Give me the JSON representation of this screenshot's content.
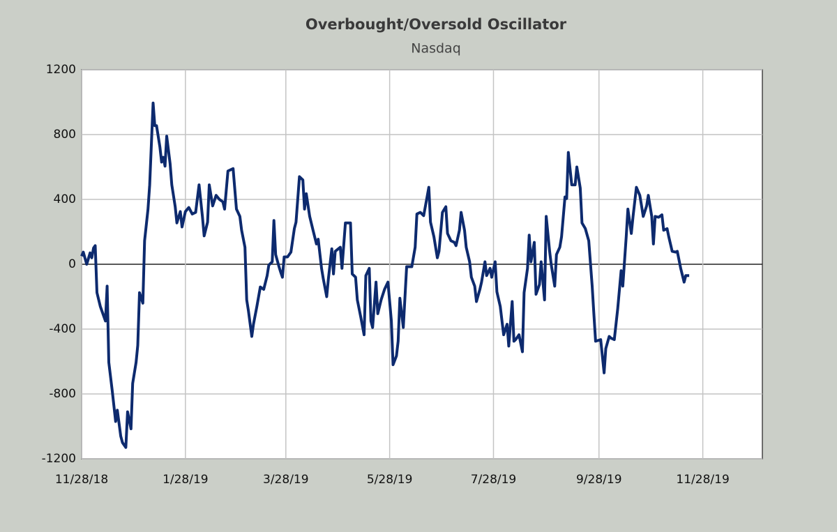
{
  "chart_data": {
    "type": "line",
    "title": "Overbought/Oversold  Oscillator",
    "subtitle": "Nasdaq",
    "color": "#0d2a6e",
    "grid": true,
    "xlim": [
      "11/28/18",
      "1/2/20"
    ],
    "xticks": [
      "11/28/18",
      "1/28/19",
      "3/28/19",
      "5/28/19",
      "7/28/19",
      "9/28/19",
      "11/28/19"
    ],
    "ylim": [
      -1200,
      1200
    ],
    "yticks": [
      -1200,
      -800,
      -400,
      0,
      400,
      800,
      1200
    ],
    "x": [
      "11/28/18",
      "11/29/18",
      "12/1/18",
      "12/3/18",
      "12/4/18",
      "12/5/18",
      "12/6/18",
      "12/7/18",
      "12/9/18",
      "12/12/18",
      "12/13/18",
      "12/14/18",
      "12/16/18",
      "12/18/18",
      "12/19/18",
      "12/21/18",
      "12/22/18",
      "12/24/18",
      "12/25/18",
      "12/27/18",
      "12/28/18",
      "12/30/18",
      "12/31/18",
      "1/1/19",
      "1/3/19",
      "1/4/19",
      "1/6/19",
      "1/7/19",
      "1/9/19",
      "1/10/19",
      "1/11/19",
      "1/13/19",
      "1/14/19",
      "1/15/19",
      "1/16/19",
      "1/17/19",
      "1/19/19",
      "1/20/19",
      "1/22/19",
      "1/23/19",
      "1/25/19",
      "1/26/19",
      "1/28/19",
      "1/30/19",
      "2/1/19",
      "2/3/19",
      "2/5/19",
      "2/7/19",
      "2/8/19",
      "2/10/19",
      "2/11/19",
      "2/13/19",
      "2/15/19",
      "2/17/19",
      "2/19/19",
      "2/20/19",
      "2/22/19",
      "2/25/19",
      "2/27/19",
      "3/1/19",
      "3/2/19",
      "3/4/19",
      "3/5/19",
      "3/6/19",
      "3/8/19",
      "3/9/19",
      "3/11/19",
      "3/13/19",
      "3/15/19",
      "3/17/19",
      "3/18/19",
      "3/20/19",
      "3/21/19",
      "3/22/19",
      "3/24/19",
      "3/25/19",
      "3/26/19",
      "3/27/19",
      "3/29/19",
      "3/31/19",
      "4/2/19",
      "4/3/19",
      "4/5/19",
      "4/7/19",
      "4/8/19",
      "4/9/19",
      "4/11/19",
      "4/13/19",
      "4/15/19",
      "4/16/19",
      "4/18/19",
      "4/19/19",
      "4/21/19",
      "4/22/19",
      "4/24/19",
      "4/25/19",
      "4/26/19",
      "4/29/19",
      "4/30/19",
      "5/2/19",
      "5/5/19",
      "5/6/19",
      "5/8/19",
      "5/9/19",
      "5/11/19",
      "5/13/19",
      "5/14/19",
      "5/16/19",
      "5/17/19",
      "5/18/19",
      "5/20/19",
      "5/21/19",
      "5/23/19",
      "5/25/19",
      "5/27/19",
      "5/29/19",
      "5/30/19",
      "6/1/19",
      "6/2/19",
      "6/3/19",
      "6/5/19",
      "6/7/19",
      "6/10/19",
      "6/12/19",
      "6/13/19",
      "6/15/19",
      "6/17/19",
      "6/19/19",
      "6/20/19",
      "6/21/19",
      "6/23/19",
      "6/25/19",
      "6/26/19",
      "6/28/19",
      "6/30/19",
      "7/1/19",
      "7/3/19",
      "7/5/19",
      "7/6/19",
      "7/8/19",
      "7/9/19",
      "7/11/19",
      "7/12/19",
      "7/14/19",
      "7/15/19",
      "7/17/19",
      "7/18/19",
      "7/20/19",
      "7/21/19",
      "7/23/19",
      "7/24/19",
      "7/26/19",
      "7/27/19",
      "7/29/19",
      "7/30/19",
      "8/1/19",
      "8/2/19",
      "8/3/19",
      "8/5/19",
      "8/6/19",
      "8/8/19",
      "8/9/19",
      "8/10/19",
      "8/12/19",
      "8/14/19",
      "8/15/19",
      "8/17/19",
      "8/18/19",
      "8/19/19",
      "8/21/19",
      "8/22/19",
      "8/24/19",
      "8/25/19",
      "8/27/19",
      "8/28/19",
      "8/30/19",
      "8/31/19",
      "9/2/19",
      "9/3/19",
      "9/5/19",
      "9/6/19",
      "9/8/19",
      "9/9/19",
      "9/10/19",
      "9/12/19",
      "9/14/19",
      "9/15/19",
      "9/17/19",
      "9/18/19",
      "9/20/19",
      "9/22/19",
      "9/24/19",
      "9/25/19",
      "9/26/19",
      "9/29/19",
      "10/1/19",
      "10/2/19",
      "10/4/19",
      "10/5/19",
      "10/7/19",
      "10/9/19",
      "10/11/19",
      "10/12/19",
      "10/14/19",
      "10/15/19",
      "10/17/19",
      "10/18/19",
      "10/20/19",
      "10/22/19",
      "10/23/19",
      "10/24/19",
      "10/26/19",
      "10/27/19",
      "10/29/19",
      "10/30/19",
      "10/31/19",
      "11/2/19",
      "11/4/19",
      "11/5/19",
      "11/7/19",
      "11/8/19",
      "11/10/19",
      "11/12/19",
      "11/13/19",
      "11/15/19",
      "11/17/19",
      "11/18/19",
      "11/20/19"
    ],
    "values": [
      50,
      75,
      0,
      70,
      40,
      100,
      115,
      -175,
      -260,
      -350,
      -135,
      -605,
      -780,
      -970,
      -900,
      -1060,
      -1100,
      -1130,
      -910,
      -1015,
      -735,
      -605,
      -500,
      -175,
      -240,
      145,
      340,
      490,
      995,
      855,
      855,
      725,
      630,
      660,
      605,
      790,
      620,
      490,
      355,
      255,
      325,
      230,
      325,
      350,
      310,
      320,
      490,
      295,
      175,
      260,
      490,
      360,
      425,
      400,
      385,
      340,
      575,
      590,
      340,
      295,
      210,
      105,
      -220,
      -285,
      -445,
      -370,
      -260,
      -140,
      -155,
      -70,
      -5,
      15,
      270,
      60,
      -15,
      -50,
      -80,
      45,
      45,
      75,
      220,
      260,
      540,
      520,
      340,
      435,
      295,
      210,
      125,
      155,
      -25,
      -90,
      -200,
      -90,
      95,
      -60,
      80,
      105,
      -25,
      255,
      255,
      -60,
      -80,
      -220,
      -325,
      -435,
      -70,
      -25,
      -350,
      -390,
      -110,
      -305,
      -220,
      -155,
      -110,
      -350,
      -620,
      -565,
      -475,
      -210,
      -390,
      -15,
      -15,
      105,
      310,
      320,
      300,
      415,
      475,
      260,
      170,
      40,
      80,
      320,
      355,
      190,
      145,
      135,
      115,
      210,
      320,
      210,
      105,
      15,
      -80,
      -135,
      -230,
      -155,
      -110,
      15,
      -70,
      -25,
      -80,
      15,
      -170,
      -260,
      -350,
      -435,
      -370,
      -505,
      -230,
      -475,
      -465,
      -435,
      -540,
      -175,
      -25,
      180,
      15,
      135,
      -185,
      -125,
      15,
      -220,
      295,
      80,
      -5,
      -135,
      60,
      105,
      170,
      415,
      405,
      690,
      490,
      490,
      600,
      470,
      255,
      220,
      145,
      -135,
      -305,
      -475,
      -465,
      -670,
      -520,
      -445,
      -455,
      -465,
      -275,
      -40,
      -135,
      170,
      340,
      190,
      295,
      475,
      425,
      360,
      295,
      360,
      425,
      295,
      125,
      295,
      290,
      305,
      210,
      220,
      170,
      80,
      75,
      80,
      -25,
      -110,
      -70,
      -70
    ]
  }
}
